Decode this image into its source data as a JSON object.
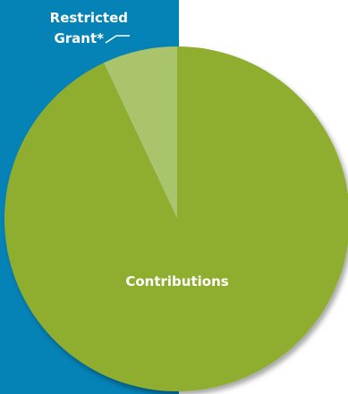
{
  "colors": {
    "panel": "#0582b6",
    "contributions": "#8fad2f",
    "restricted_grant": "#a9c46a"
  },
  "chart_data": {
    "type": "pie",
    "slices": [
      {
        "label": "Contributions",
        "value": 93,
        "color": "#8fad2f"
      },
      {
        "label": "Restricted Grant*",
        "value": 7,
        "color": "#a9c46a"
      }
    ],
    "labels": {
      "restricted_line1": "Restricted",
      "restricted_line2": "Grant*",
      "contributions": "Contributions"
    }
  }
}
